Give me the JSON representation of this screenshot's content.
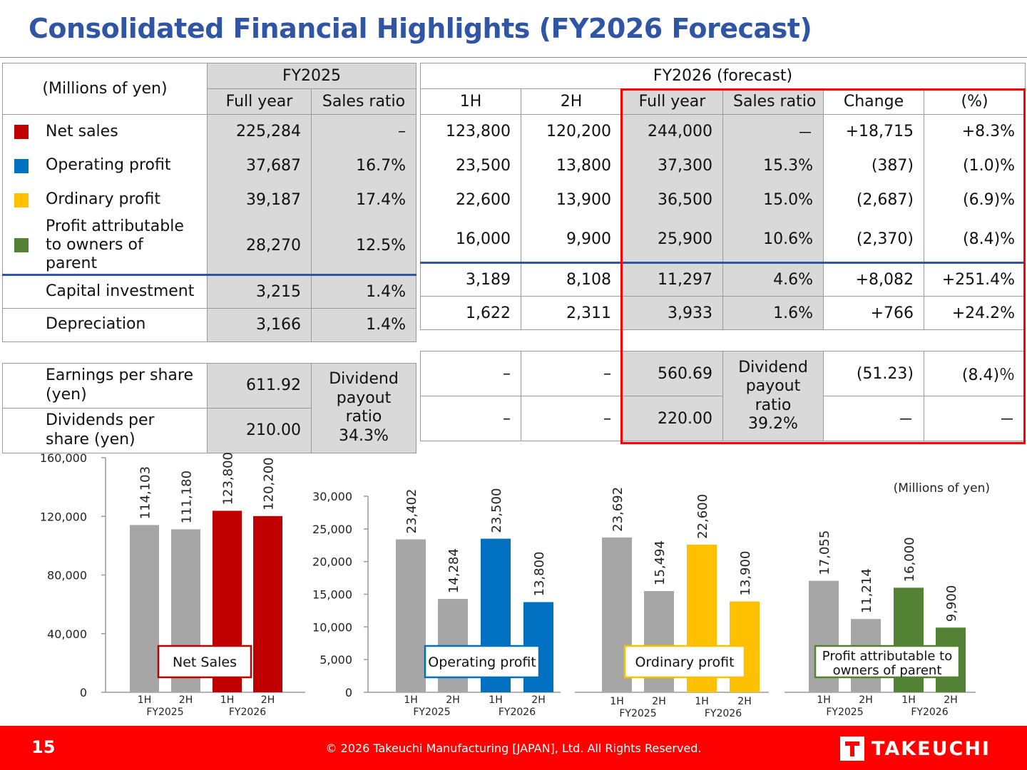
{
  "title": "Consolidated Financial Highlights (FY2026 Forecast)",
  "table": {
    "unit": "(Millions of yen)",
    "fy2025": "FY2025",
    "fy2026": "FY2026 (forecast)",
    "cols": [
      "Full year",
      "Sales ratio",
      "1H",
      "2H",
      "Full year",
      "Sales ratio",
      "Change",
      "(%)"
    ],
    "rows": [
      {
        "label": "Net sales",
        "color": "#c00000",
        "values": [
          "225,284",
          "–",
          "123,800",
          "120,200",
          "244,000",
          "－",
          "+18,715",
          "+8.3%"
        ]
      },
      {
        "label": "Operating profit",
        "color": "#0070c0",
        "values": [
          "37,687",
          "16.7%",
          "23,500",
          "13,800",
          "37,300",
          "15.3%",
          "(387)",
          "(1.0)%"
        ]
      },
      {
        "label": "Ordinary profit",
        "color": "#ffc000",
        "values": [
          "39,187",
          "17.4%",
          "22,600",
          "13,900",
          "36,500",
          "15.0%",
          "(2,687)",
          "(6.9)%"
        ]
      },
      {
        "label": "Profit attributable to owners of parent",
        "color": "#548235",
        "values": [
          "28,270",
          "12.5%",
          "16,000",
          "9,900",
          "25,900",
          "10.6%",
          "(2,370)",
          "(8.4)%"
        ]
      },
      {
        "label": "Capital investment",
        "color": "",
        "values": [
          "3,215",
          "1.4%",
          "3,189",
          "8,108",
          "11,297",
          "4.6%",
          "+8,082",
          "+251.4%"
        ]
      },
      {
        "label": "Depreciation",
        "color": "",
        "values": [
          "3,166",
          "1.4%",
          "1,622",
          "2,311",
          "3,933",
          "1.6%",
          "+766",
          "+24.2%"
        ]
      }
    ],
    "eps": {
      "label": "Earnings per share (yen)",
      "fy2025": "611.92",
      "h1": "–",
      "h2": "–",
      "fy2026": "560.69",
      "change": "(51.23)",
      "pct": "(8.4)％"
    },
    "dps": {
      "label": "Dividends per share (yen)",
      "fy2025": "210.00",
      "h1": "–",
      "h2": "–",
      "fy2026": "220.00",
      "change": "－",
      "pct": "－"
    },
    "payout_2025": {
      "l1": "Dividend",
      "l2": "payout",
      "l3": "ratio",
      "l4": "34.3%"
    },
    "payout_2026": {
      "l1": "Dividend",
      "l2": "payout",
      "l3": "ratio",
      "l4": "39.2%"
    }
  },
  "charts_unit": "(Millions of yen)",
  "chart_data": [
    {
      "type": "bar",
      "title": "Net Sales",
      "categories": [
        "1H FY2025",
        "2H FY2025",
        "1H FY2026",
        "2H FY2026"
      ],
      "tick_labels": [
        "1H",
        "2H",
        "1H",
        "2H"
      ],
      "groups": [
        "FY2025",
        "FY2026"
      ],
      "values": [
        114103,
        111180,
        123800,
        120200
      ],
      "data_labels": [
        "114,103",
        "111,180",
        "123,800",
        "120,200"
      ],
      "y_ticks": [
        "0",
        "40,000",
        "80,000",
        "120,000",
        "160,000"
      ],
      "ylim": [
        0,
        160000
      ],
      "colors": [
        "#a6a6a6",
        "#a6a6a6",
        "#c00000",
        "#c00000"
      ],
      "accent": "#c00000"
    },
    {
      "type": "bar",
      "title": "Operating profit",
      "categories": [
        "1H FY2025",
        "2H FY2025",
        "1H FY2026",
        "2H FY2026"
      ],
      "tick_labels": [
        "1H",
        "2H",
        "1H",
        "2H"
      ],
      "groups": [
        "FY2025",
        "FY2026"
      ],
      "values": [
        23402,
        14284,
        23500,
        13800
      ],
      "data_labels": [
        "23,402",
        "14,284",
        "23,500",
        "13,800"
      ],
      "y_ticks": [
        "0",
        "5,000",
        "10,000",
        "15,000",
        "20,000",
        "25,000",
        "30,000"
      ],
      "ylim": [
        0,
        30000
      ],
      "colors": [
        "#a6a6a6",
        "#a6a6a6",
        "#0070c0",
        "#0070c0"
      ],
      "accent": "#0070c0"
    },
    {
      "type": "bar",
      "title": "Ordinary profit",
      "categories": [
        "1H FY2025",
        "2H FY2025",
        "1H FY2026",
        "2H FY2026"
      ],
      "tick_labels": [
        "1H",
        "2H",
        "1H",
        "2H"
      ],
      "groups": [
        "FY2025",
        "FY2026"
      ],
      "values": [
        23692,
        15494,
        22600,
        13900
      ],
      "data_labels": [
        "23,692",
        "15,494",
        "22,600",
        "13,900"
      ],
      "ylim": [
        0,
        30000
      ],
      "colors": [
        "#a6a6a6",
        "#a6a6a6",
        "#ffc000",
        "#ffc000"
      ],
      "accent": "#ffc000"
    },
    {
      "type": "bar",
      "title": "Profit attributable to owners of parent",
      "title_l1": "Profit attributable to",
      "title_l2": "owners of parent",
      "categories": [
        "1H FY2025",
        "2H FY2025",
        "1H FY2026",
        "2H FY2026"
      ],
      "tick_labels": [
        "1H",
        "2H",
        "1H",
        "2H"
      ],
      "groups": [
        "FY2025",
        "FY2026"
      ],
      "values": [
        17055,
        11214,
        16000,
        9900
      ],
      "data_labels": [
        "17,055",
        "11,214",
        "16,000",
        "9,900"
      ],
      "ylim": [
        0,
        30000
      ],
      "colors": [
        "#a6a6a6",
        "#a6a6a6",
        "#548235",
        "#548235"
      ],
      "accent": "#548235"
    }
  ],
  "footer": {
    "page": "15",
    "copyright": "© 2026 Takeuchi Manufacturing [JAPAN], Ltd. All Rights Reserved.",
    "logo": "TAKEUCHI"
  }
}
